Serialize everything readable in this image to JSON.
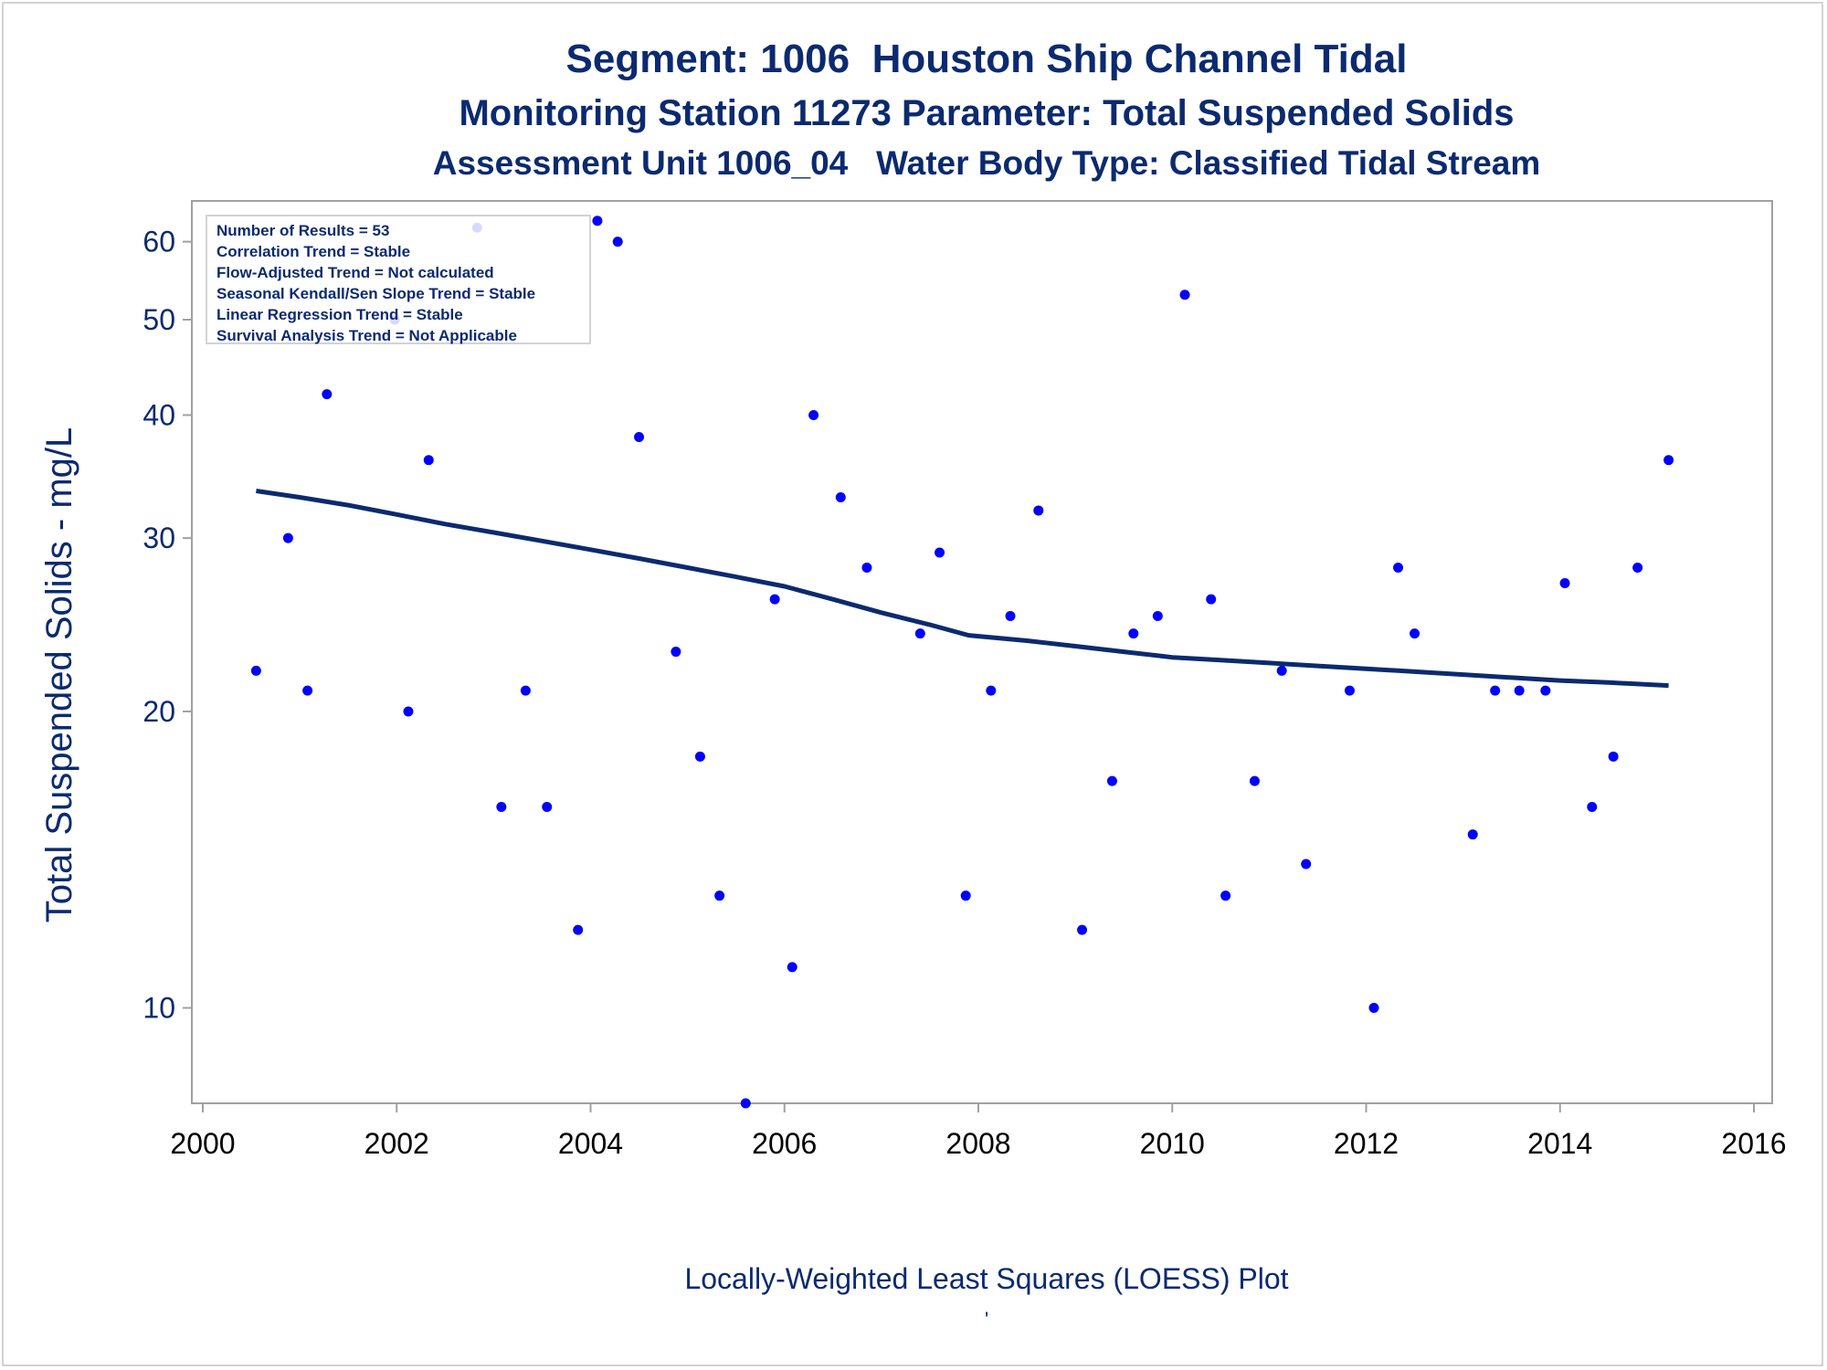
{
  "titles": {
    "line1": "Segment: 1006  Houston Ship Channel Tidal",
    "line2": "Monitoring Station 11273 Parameter: Total Suspended Solids",
    "line3": "Assessment Unit 1006_04   Water Body Type: Classified Tidal Stream"
  },
  "footnote": "Locally-Weighted Least Squares (LOESS) Plot",
  "footnote_mark": "'",
  "inset": {
    "lines": [
      "Number of Results = 53",
      "Correlation Trend = Stable",
      "Flow-Adjusted Trend = Not calculated",
      "Seasonal Kendall/Sen Slope Trend = Stable",
      "Linear Regression Trend = Stable",
      "Survival Analysis Trend = Not Applicable"
    ]
  },
  "colors": {
    "text": "#0b2a6f",
    "points": "#0000ff",
    "loess": "#0b2a6f",
    "frame": "#a0a0a0"
  },
  "chart_data": {
    "type": "scatter",
    "ylabel": "Total Suspended Solids - mg/L",
    "yscale": "log",
    "xlim": [
      2000,
      2016
    ],
    "ylim": [
      8,
      66
    ],
    "xticks": [
      2000,
      2002,
      2004,
      2006,
      2008,
      2010,
      2012,
      2014,
      2016
    ],
    "yticks": [
      10,
      20,
      30,
      40,
      50,
      60
    ],
    "grid": false,
    "series": [
      {
        "kind": "points",
        "x": [
          2000.55,
          2000.88,
          2001.08,
          2001.28,
          2001.98,
          2002.12,
          2002.33,
          2002.83,
          2003.08,
          2003.33,
          2003.55,
          2003.87,
          2004.07,
          2004.28,
          2004.5,
          2004.88,
          2005.13,
          2005.33,
          2005.6,
          2005.9,
          2006.08,
          2006.3,
          2006.58,
          2006.85,
          2007.4,
          2007.6,
          2007.87,
          2008.13,
          2008.33,
          2008.62,
          2009.07,
          2009.38,
          2009.6,
          2009.85,
          2010.13,
          2010.4,
          2010.55,
          2010.85,
          2011.13,
          2011.38,
          2011.83,
          2012.08,
          2012.33,
          2012.5,
          2013.1,
          2013.33,
          2013.58,
          2013.85,
          2014.05,
          2014.33,
          2014.55,
          2014.8,
          2015.12
        ],
        "y": [
          22,
          30,
          21,
          42,
          50,
          20,
          36,
          62,
          16,
          21,
          16,
          12,
          63,
          60,
          38,
          23,
          18,
          13,
          8,
          26,
          11,
          40,
          33,
          28,
          24,
          29,
          13,
          21,
          25,
          32,
          12,
          17,
          24,
          25,
          53,
          26,
          13,
          17,
          22,
          14,
          21,
          10,
          28,
          24,
          15,
          21,
          21,
          21,
          27,
          16,
          18,
          28,
          36
        ]
      },
      {
        "kind": "loess",
        "x": [
          2000.55,
          2001.0,
          2001.5,
          2002.0,
          2002.5,
          2003.0,
          2003.5,
          2004.0,
          2004.5,
          2005.0,
          2005.5,
          2006.0,
          2006.5,
          2007.0,
          2007.5,
          2007.9,
          2008.5,
          2009.0,
          2009.5,
          2010.0,
          2010.5,
          2011.0,
          2011.5,
          2012.0,
          2012.5,
          2013.0,
          2013.5,
          2014.0,
          2014.5,
          2015.12
        ],
        "y": [
          33.5,
          33.0,
          32.4,
          31.7,
          31.0,
          30.4,
          29.8,
          29.2,
          28.6,
          28.0,
          27.4,
          26.8,
          26.0,
          25.2,
          24.5,
          23.9,
          23.6,
          23.3,
          23.0,
          22.7,
          22.55,
          22.4,
          22.25,
          22.1,
          21.95,
          21.8,
          21.65,
          21.5,
          21.4,
          21.25
        ]
      }
    ]
  }
}
